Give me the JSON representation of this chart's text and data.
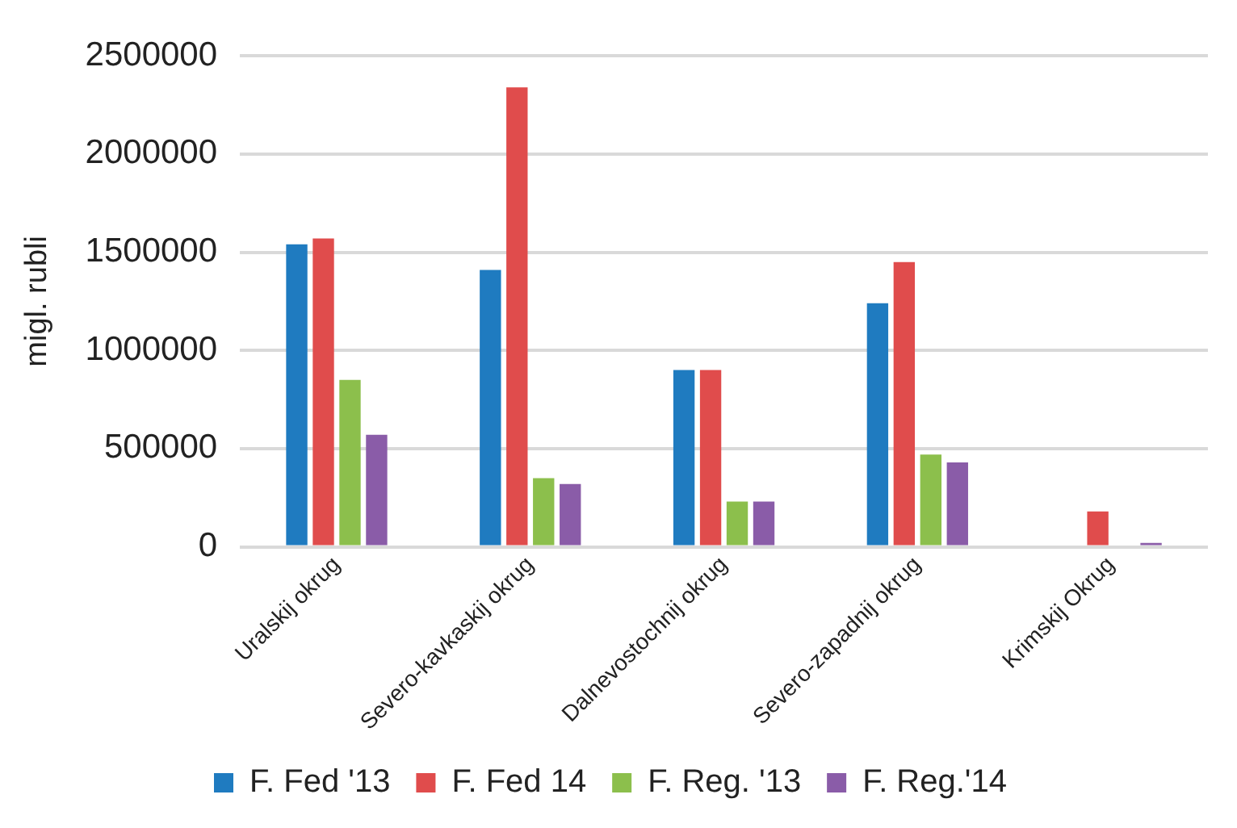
{
  "chart_data": {
    "type": "bar",
    "ylabel": "migl. rubli",
    "categories": [
      "Uralskij okrug",
      "Severo-kavkaskij okrug",
      "Dalnevostochnij okrug",
      "Severo-zapadnij okrug",
      "Krimskij Okrug"
    ],
    "series": [
      {
        "name": "F. Fed '13",
        "color": "#1f7bc0",
        "values": [
          1540000,
          1410000,
          900000,
          1240000,
          0
        ]
      },
      {
        "name": "F. Fed 14",
        "color": "#e04c4c",
        "values": [
          1570000,
          2340000,
          900000,
          1450000,
          180000
        ]
      },
      {
        "name": "F. Reg. '13",
        "color": "#8cbf4c",
        "values": [
          850000,
          350000,
          230000,
          470000,
          0
        ]
      },
      {
        "name": "F. Reg.'14",
        "color": "#8a5ca8",
        "values": [
          570000,
          320000,
          230000,
          430000,
          20000
        ]
      }
    ],
    "ylim": [
      0,
      2500000
    ],
    "yticks": [
      0,
      500000,
      1000000,
      1500000,
      2000000,
      2500000
    ],
    "grid": "y",
    "legend": "bottom"
  }
}
